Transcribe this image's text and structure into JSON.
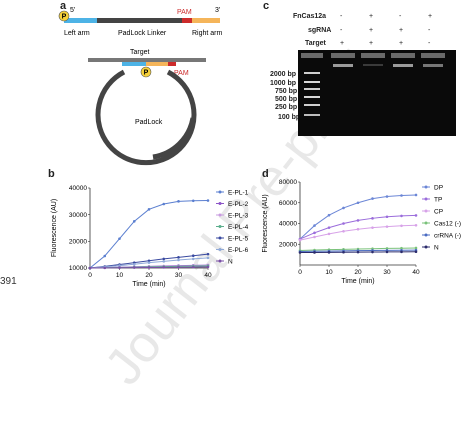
{
  "watermark": "Journal Pre-proof",
  "line_number": "391",
  "panel_a": {
    "label": "a",
    "five_prime": "5'",
    "three_prime": "3'",
    "p_badge": "P",
    "pam_top": "PAM",
    "left_arm": "Left arm",
    "linker": "PadLock Linker",
    "right_arm": "Right arm",
    "target": "Target",
    "pam_circle": "PAM",
    "padlock": "PadLock",
    "colors": {
      "left_arm": "#4db3e6",
      "linker": "#444444",
      "pam": "#cc2b2b",
      "right_arm": "#f5b55a"
    }
  },
  "panel_c": {
    "label": "c",
    "row_labels": [
      "FnCas12a",
      "sgRNA",
      "Target"
    ],
    "lanes": [
      [
        "-",
        "+",
        "-",
        "+"
      ],
      [
        "-",
        "+",
        "+",
        "-"
      ],
      [
        "+",
        "+",
        "+",
        "-"
      ]
    ],
    "ladder": [
      "2000 bp",
      "1000 bp",
      "750 bp",
      "500 bp",
      "250 bp",
      "100 bp"
    ]
  },
  "panel_b": {
    "label": "b",
    "ylabel": "Fluorescence (AU)",
    "xlabel": "Time (min)",
    "legend": [
      "E-PL-1",
      "E-PL-2",
      "E-PL-3",
      "E-PL-4",
      "E-PL-5",
      "E-PL-6",
      "N"
    ]
  },
  "panel_d": {
    "label": "d",
    "ylabel": "Fluorescence (AU)",
    "xlabel": "Time (min)",
    "legend": [
      "DP",
      "TP",
      "CP",
      "Cas12 (-)",
      "crRNA (-)",
      "N"
    ]
  },
  "chart_data": [
    {
      "type": "line",
      "xlabel": "Time (min)",
      "ylabel": "Fluorescence (AU)",
      "xlim": [
        0,
        40
      ],
      "ylim": [
        10000,
        40000
      ],
      "xticks": [
        0,
        10,
        20,
        30,
        40
      ],
      "yticks": [
        10000,
        20000,
        30000,
        40000
      ],
      "ytick_labels": [
        "10000",
        "20000",
        "30000",
        "40000"
      ],
      "x": [
        0,
        5,
        10,
        15,
        20,
        25,
        30,
        35,
        40
      ],
      "series": [
        {
          "name": "E-PL-1",
          "color": "#5b7fd0",
          "values": [
            10000,
            14500,
            21000,
            27500,
            32000,
            34000,
            35000,
            35200,
            35300
          ]
        },
        {
          "name": "E-PL-2",
          "color": "#8c55c8",
          "values": [
            10000,
            10150,
            10300,
            10450,
            10600,
            10750,
            10900,
            11000,
            11100
          ]
        },
        {
          "name": "E-PL-3",
          "color": "#c89be0",
          "values": [
            10000,
            10120,
            10250,
            10380,
            10500,
            10620,
            10740,
            10850,
            10950
          ]
        },
        {
          "name": "E-PL-4",
          "color": "#5bae8c",
          "values": [
            10000,
            10100,
            10200,
            10300,
            10400,
            10500,
            10600,
            10700,
            10800
          ]
        },
        {
          "name": "E-PL-5",
          "color": "#3a4aa0",
          "values": [
            10000,
            10600,
            11300,
            12000,
            12700,
            13400,
            14000,
            14600,
            15200
          ]
        },
        {
          "name": "E-PL-6",
          "color": "#8fa9d8",
          "values": [
            10000,
            10400,
            10900,
            11400,
            12000,
            12500,
            13000,
            13400,
            13800
          ]
        },
        {
          "name": "N",
          "color": "#7a4fa6",
          "values": [
            10000,
            10050,
            10100,
            10150,
            10200,
            10250,
            10300,
            10350,
            10400
          ]
        }
      ]
    },
    {
      "type": "line",
      "xlabel": "Time (min)",
      "ylabel": "Fluorescence (AU)",
      "xlim": [
        0,
        40
      ],
      "ylim": [
        0,
        80000
      ],
      "xticks": [
        0,
        10,
        20,
        30,
        40
      ],
      "yticks": [
        20000,
        40000,
        60000,
        80000
      ],
      "ytick_labels": [
        "20000",
        "40000",
        "60000",
        "80000"
      ],
      "x": [
        0,
        5,
        10,
        15,
        20,
        25,
        30,
        35,
        40
      ],
      "series": [
        {
          "name": "DP",
          "color": "#6b86d6",
          "values": [
            25000,
            38000,
            48000,
            55000,
            60000,
            64000,
            66000,
            67000,
            67500
          ]
        },
        {
          "name": "TP",
          "color": "#9a6cdb",
          "values": [
            25000,
            31000,
            36000,
            40000,
            43000,
            45000,
            46500,
            47300,
            47800
          ]
        },
        {
          "name": "CP",
          "color": "#d7a2e8",
          "values": [
            24000,
            27000,
            30000,
            32500,
            34500,
            36000,
            37000,
            37800,
            38300
          ]
        },
        {
          "name": "Cas12 (-)",
          "color": "#7ac27a",
          "values": [
            14000,
            14400,
            14800,
            15100,
            15400,
            15700,
            16000,
            16200,
            16400
          ]
        },
        {
          "name": "crRNA (-)",
          "color": "#4a6bc2",
          "values": [
            13000,
            13200,
            13400,
            13600,
            13800,
            14000,
            14100,
            14200,
            14300
          ]
        },
        {
          "name": "N",
          "color": "#2c2c6c",
          "values": [
            12000,
            12100,
            12200,
            12300,
            12400,
            12500,
            12600,
            12700,
            12800
          ]
        }
      ]
    }
  ]
}
